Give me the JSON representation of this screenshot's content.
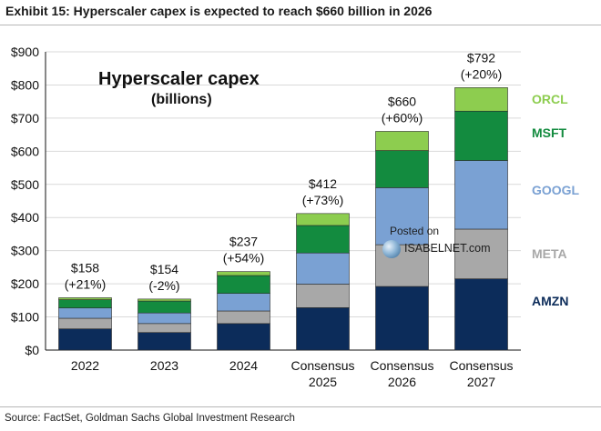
{
  "header": {
    "title": "Exhibit 15: Hyperscaler capex is expected to reach $660 billion in 2026"
  },
  "footer": {
    "source": "Source: FactSet, Goldman Sachs Global Investment Research"
  },
  "watermark": {
    "posted": "Posted on",
    "site": "ISABELNET.com"
  },
  "colors": {
    "AMZN": "#0c2c5a",
    "META": "#a8a8a8",
    "GOOGL": "#7aa1d3",
    "MSFT": "#138b3f",
    "ORCL": "#8dcd4f",
    "gridline": "#d9d9d9",
    "axis": "#111111"
  },
  "chart_data": {
    "type": "bar",
    "stacked": true,
    "title": "Hyperscaler capex",
    "subtitle": "(billions)",
    "categories": [
      [
        "2022"
      ],
      [
        "2023"
      ],
      [
        "2024"
      ],
      [
        "Consensus",
        "2025"
      ],
      [
        "Consensus",
        "2026"
      ],
      [
        "Consensus",
        "2027"
      ]
    ],
    "series": [
      {
        "name": "AMZN",
        "values": [
          64,
          53,
          80,
          128,
          192,
          215
        ]
      },
      {
        "name": "META",
        "values": [
          32,
          27,
          38,
          71,
          126,
          150
        ]
      },
      {
        "name": "GOOGL",
        "values": [
          31,
          32,
          53,
          94,
          172,
          207
        ]
      },
      {
        "name": "MSFT",
        "values": [
          25,
          36,
          54,
          83,
          112,
          149
        ]
      },
      {
        "name": "ORCL",
        "values": [
          6,
          6,
          12,
          36,
          58,
          71
        ]
      }
    ],
    "totals": [
      {
        "value": "$158",
        "change": "(+21%)"
      },
      {
        "value": "$154",
        "change": "(-2%)"
      },
      {
        "value": "$237",
        "change": "(+54%)"
      },
      {
        "value": "$412",
        "change": "(+73%)"
      },
      {
        "value": "$660",
        "change": "(+60%)"
      },
      {
        "value": "$792",
        "change": "(+20%)"
      }
    ],
    "ylim": [
      0,
      900
    ],
    "yticks": [
      "$0",
      "$100",
      "$200",
      "$300",
      "$400",
      "$500",
      "$600",
      "$700",
      "$800",
      "$900"
    ],
    "grid": true,
    "legend_position": "right",
    "legend_order": [
      "ORCL",
      "MSFT",
      "GOOGL",
      "META",
      "AMZN"
    ]
  }
}
